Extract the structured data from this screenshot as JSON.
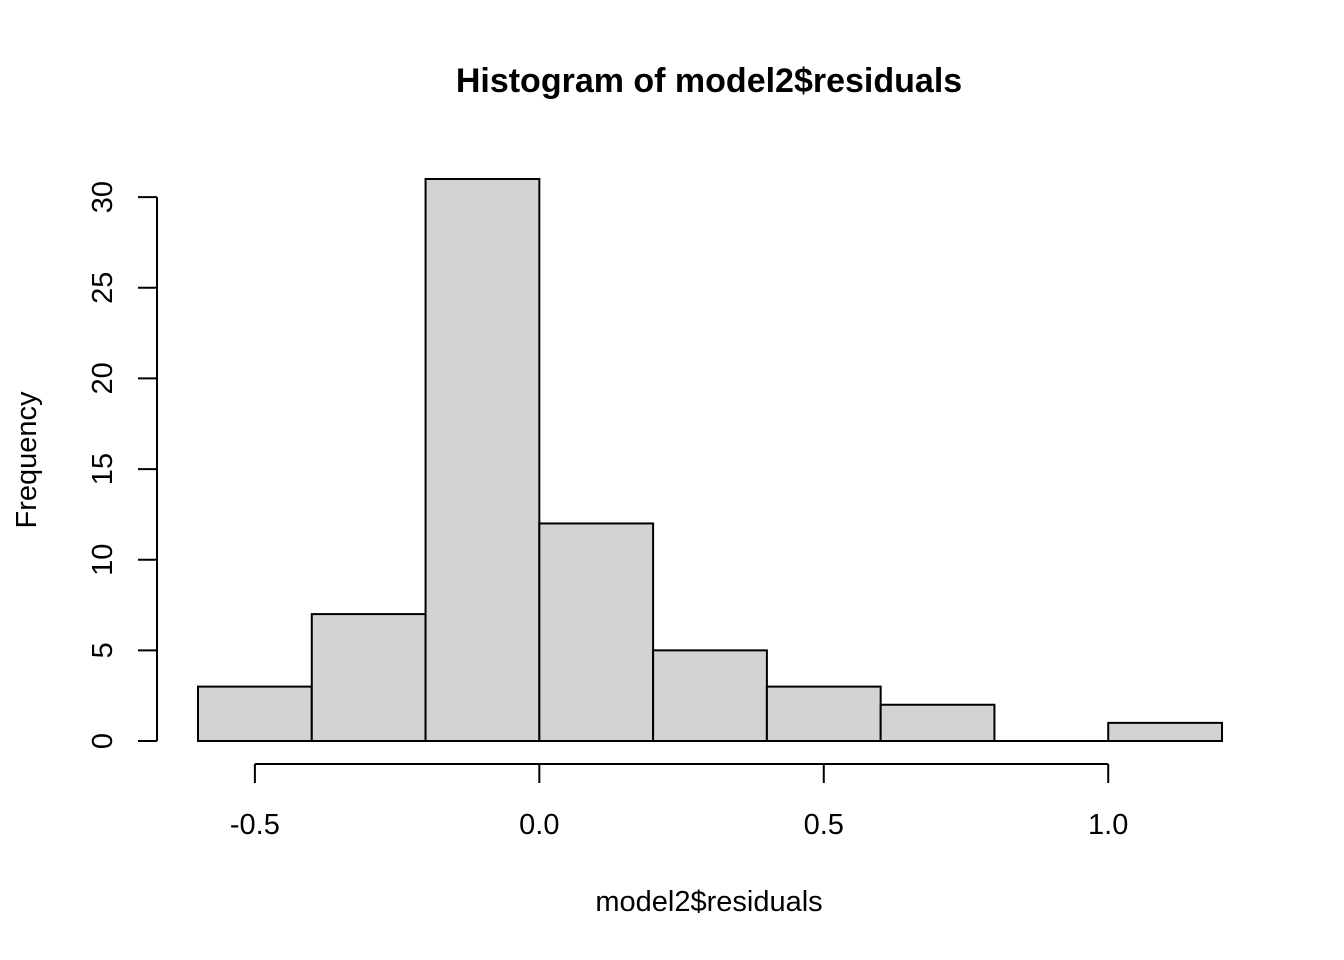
{
  "chart_data": {
    "type": "bar",
    "title": "Histogram of model2$residuals",
    "xlabel": "model2$residuals",
    "ylabel": "Frequency",
    "bin_edges": [
      -0.6,
      -0.4,
      -0.2,
      0.0,
      0.2,
      0.4,
      0.6,
      0.8,
      1.0,
      1.2
    ],
    "values": [
      3,
      7,
      31,
      12,
      5,
      3,
      2,
      0,
      1
    ],
    "x_ticks": [
      -0.5,
      0.0,
      0.5,
      1.0
    ],
    "x_tick_labels": [
      "-0.5",
      "0.0",
      "0.5",
      "1.0"
    ],
    "y_ticks": [
      0,
      5,
      10,
      15,
      20,
      25,
      30
    ],
    "y_tick_labels": [
      "0",
      "5",
      "10",
      "15",
      "20",
      "25",
      "30"
    ],
    "xlim": [
      -0.6,
      1.2
    ],
    "ylim": [
      0,
      31
    ],
    "bar_color": "#d3d3d3",
    "grid": false
  }
}
